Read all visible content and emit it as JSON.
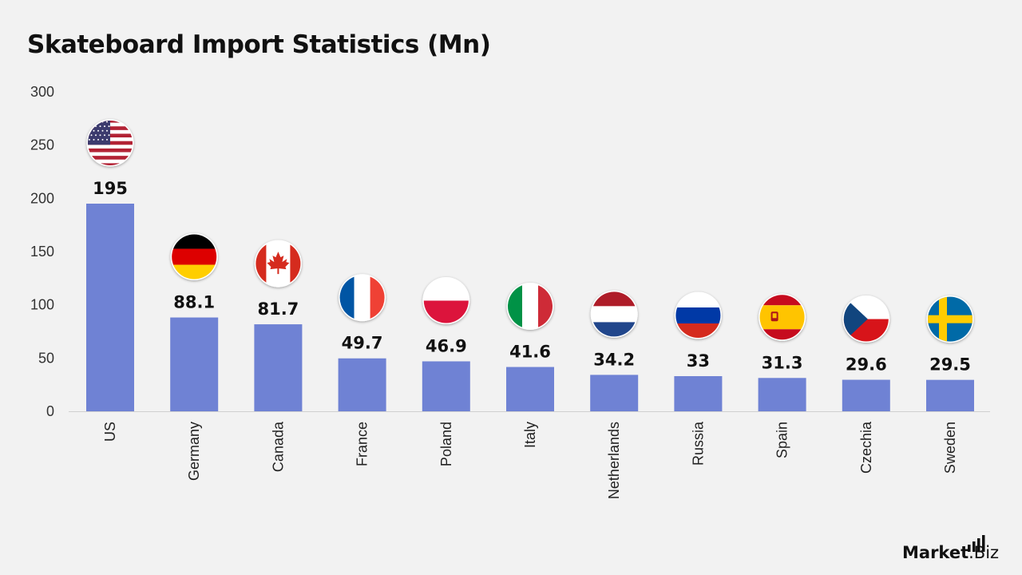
{
  "chart_data": {
    "type": "bar",
    "title": "Skateboard Import Statistics (Mn)",
    "categories": [
      "US",
      "Germany",
      "Canada",
      "France",
      "Poland",
      "Italy",
      "Netherlands",
      "Russia",
      "Spain",
      "Czechia",
      "Sweden"
    ],
    "values": [
      195,
      88.1,
      81.7,
      49.7,
      46.9,
      41.6,
      34.2,
      33,
      31.3,
      29.6,
      29.5
    ],
    "value_labels": [
      "195",
      "88.1",
      "81.7",
      "49.7",
      "46.9",
      "41.6",
      "34.2",
      "33",
      "31.3",
      "29.6",
      "29.5"
    ],
    "ylim": [
      0,
      300
    ],
    "yticks": [
      0,
      50,
      100,
      150,
      200,
      250,
      300
    ],
    "grid": false,
    "bar_color": "#6f82d4",
    "flag_icons": [
      "us-flag-icon",
      "germany-flag-icon",
      "canada-flag-icon",
      "france-flag-icon",
      "poland-flag-icon",
      "italy-flag-icon",
      "netherlands-flag-icon",
      "russia-flag-icon",
      "spain-flag-icon",
      "czechia-flag-icon",
      "sweden-flag-icon"
    ]
  },
  "brand": {
    "part1": "Market",
    "part2": ".Biz",
    "icon": "bar-signal-icon"
  }
}
